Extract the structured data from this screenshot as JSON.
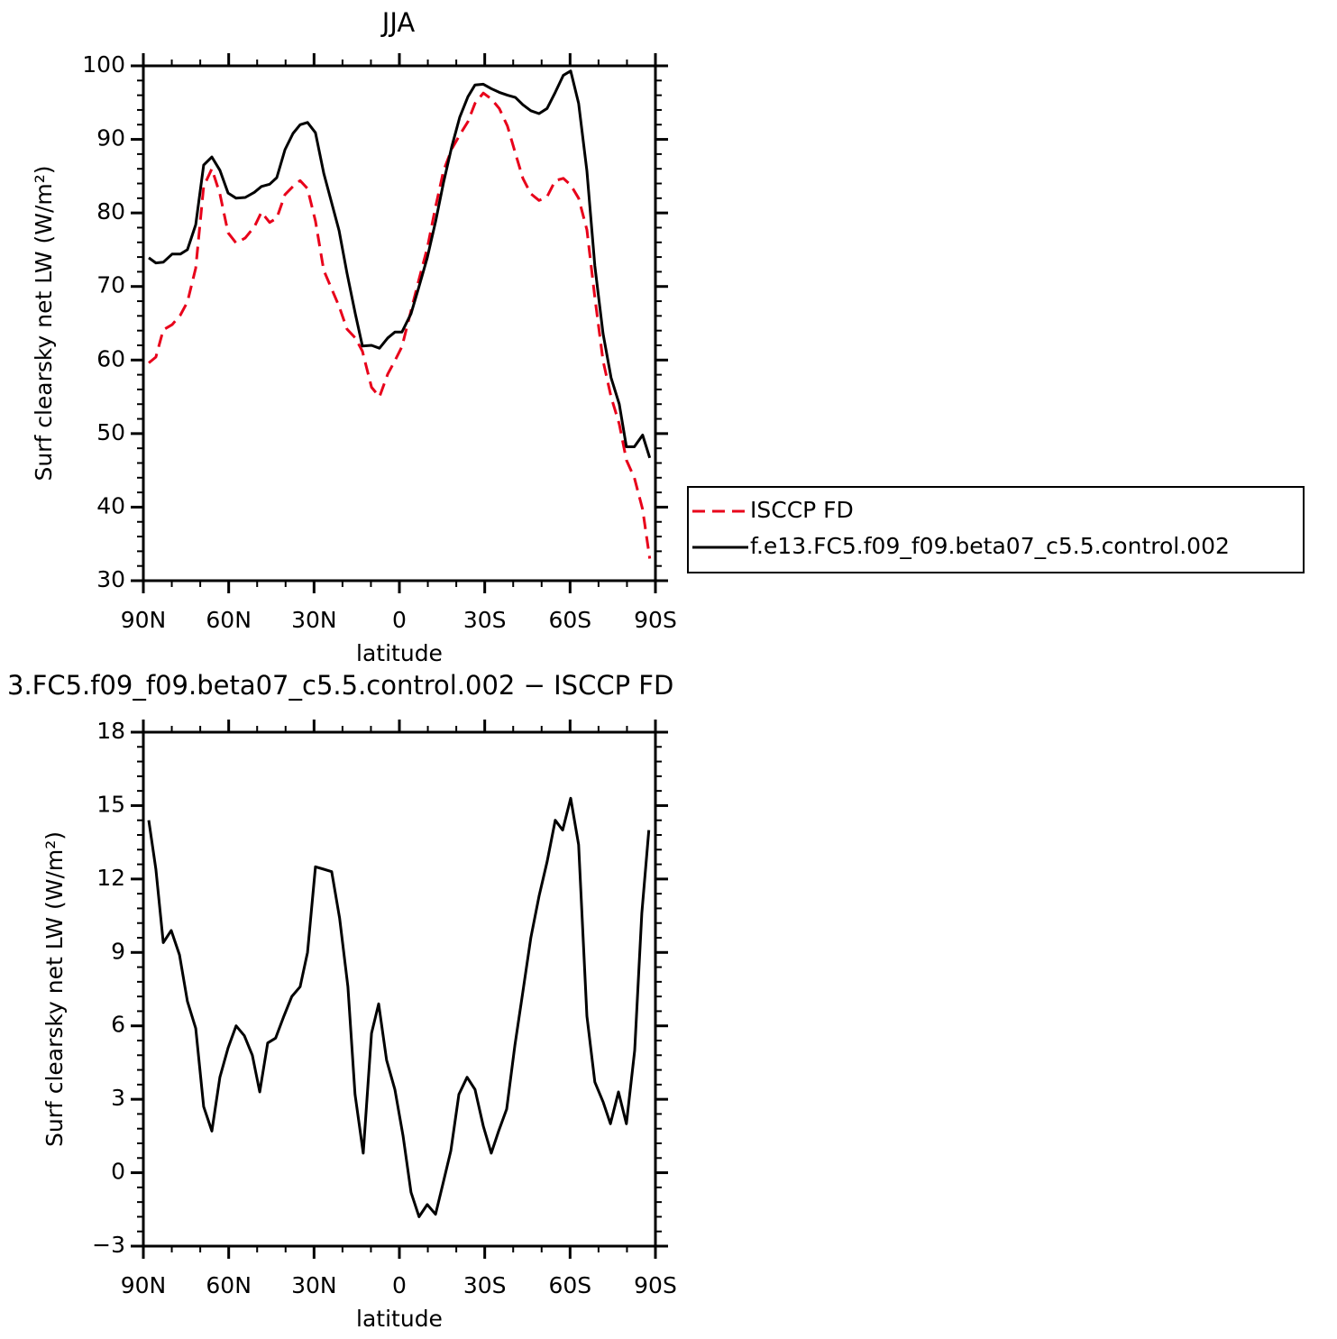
{
  "chart_data": [
    {
      "type": "line",
      "title": "JJA",
      "xlabel": "latitude",
      "ylabel": "Surf clearsky net LW (W/m²)",
      "xlim": [
        90,
        -90
      ],
      "ylim": [
        30,
        100
      ],
      "xticks": [
        {
          "value": 90,
          "label": "90N"
        },
        {
          "value": 60,
          "label": "60N"
        },
        {
          "value": 30,
          "label": "30N"
        },
        0,
        {
          "value": -30,
          "label": "30S"
        },
        {
          "value": -60,
          "label": "60S"
        },
        {
          "value": -90,
          "label": "90S"
        }
      ],
      "yticks": [
        30,
        40,
        50,
        60,
        70,
        80,
        90,
        100
      ],
      "xminor": 3,
      "yminor": 5,
      "legend": "right",
      "x": [
        88.1,
        85.6,
        83.0,
        79.9,
        77.0,
        74.5,
        71.6,
        68.8,
        65.9,
        63.1,
        60.2,
        57.4,
        54.2,
        51.0,
        48.5,
        45.6,
        43.1,
        40.2,
        37.4,
        34.9,
        32.3,
        29.5,
        26.6,
        21.2,
        18.4,
        15.5,
        13.0,
        9.8,
        7.0,
        4.1,
        1.6,
        -0.9,
        -4.1,
        -6.9,
        -9.8,
        -12.7,
        -15.5,
        -18.4,
        -21.2,
        -24.1,
        -26.6,
        -29.5,
        -32.3,
        -35.1,
        -38.0,
        -40.8,
        -43.4,
        -46.2,
        -49.1,
        -51.9,
        -54.8,
        -57.6,
        -60.2,
        -63.0,
        -65.9,
        -68.7,
        -71.6,
        -74.4,
        -77.3,
        -79.8,
        -82.6,
        -85.5,
        -88.0
      ],
      "series": [
        {
          "name": "ISCCP FD",
          "color": "#e8001a",
          "dashed": true,
          "values": [
            59.6,
            60.4,
            64.1,
            64.8,
            66.1,
            67.9,
            72.5,
            83.6,
            86.0,
            82.6,
            77.3,
            75.9,
            76.6,
            78.1,
            80.1,
            78.7,
            79.3,
            82.5,
            83.6,
            84.4,
            83.3,
            78.9,
            72.2,
            67.3,
            64.2,
            63.0,
            61.2,
            56.3,
            55.0,
            58.1,
            59.9,
            61.8,
            66.7,
            71.0,
            75.2,
            80.8,
            85.7,
            88.7,
            90.6,
            92.4,
            94.9,
            96.3,
            95.5,
            94.2,
            91.8,
            88.1,
            84.7,
            82.6,
            81.7,
            82.2,
            84.4,
            84.7,
            83.8,
            82.0,
            77.7,
            68.5,
            59.9,
            55.0,
            51.3,
            46.4,
            44.0,
            39.7,
            33.0
          ]
        },
        {
          "name": "f.e13.FC5.f09_f09.beta07_c5.5.control.002",
          "color": "#000000",
          "dashed": false,
          "values": [
            73.9,
            73.2,
            73.3,
            74.4,
            74.4,
            75.0,
            78.4,
            86.5,
            87.6,
            85.8,
            82.7,
            82.0,
            82.1,
            82.8,
            83.6,
            83.9,
            84.8,
            88.6,
            90.8,
            92.0,
            92.3,
            90.9,
            85.4,
            77.6,
            71.8,
            66.3,
            61.9,
            62.0,
            61.6,
            63.0,
            63.8,
            63.8,
            66.3,
            70.0,
            73.9,
            78.8,
            84.1,
            89.0,
            93.0,
            95.8,
            97.4,
            97.5,
            96.9,
            96.4,
            96.0,
            95.7,
            94.7,
            93.9,
            93.5,
            94.2,
            96.4,
            98.7,
            99.3,
            94.9,
            85.7,
            72.8,
            63.6,
            57.6,
            54.0,
            48.2,
            48.2,
            49.8,
            46.7
          ]
        }
      ]
    },
    {
      "type": "line",
      "title": "3.FC5.f09_f09.beta07_c5.5.control.002 − ISCCP FD",
      "xlabel": "latitude",
      "ylabel": "Surf clearsky net LW (W/m²)",
      "xlim": [
        90,
        -90
      ],
      "ylim": [
        -3,
        18
      ],
      "xticks": [
        {
          "value": 90,
          "label": "90N"
        },
        {
          "value": 60,
          "label": "60N"
        },
        {
          "value": 30,
          "label": "30N"
        },
        0,
        {
          "value": -30,
          "label": "30S"
        },
        {
          "value": -60,
          "label": "60S"
        },
        {
          "value": -90,
          "label": "90S"
        }
      ],
      "yticks": [
        {
          "value": -3,
          "label": "−3"
        },
        0,
        3,
        6,
        9,
        12,
        15,
        18
      ],
      "xminor": 3,
      "yminor": 5,
      "color": "#000000",
      "x": [
        88.1,
        85.6,
        83.0,
        80.2,
        77.3,
        74.5,
        71.6,
        68.8,
        65.9,
        63.1,
        60.2,
        57.4,
        54.5,
        51.7,
        49.1,
        46.3,
        43.5,
        40.6,
        37.8,
        34.9,
        32.3,
        29.5,
        26.6,
        23.8,
        21.0,
        18.1,
        15.6,
        12.7,
        9.8,
        7.3,
        4.5,
        1.6,
        -1.3,
        -4.1,
        -6.9,
        -9.8,
        -12.7,
        -15.2,
        -18.1,
        -20.9,
        -23.8,
        -26.6,
        -29.5,
        -32.3,
        -34.9,
        -37.7,
        -40.6,
        -43.4,
        -46.2,
        -49.1,
        -51.9,
        -54.8,
        -57.4,
        -60.2,
        -63.0,
        -65.9,
        -68.7,
        -71.6,
        -74.2,
        -77.0,
        -79.8,
        -82.7,
        -85.2,
        -87.7
      ],
      "values": [
        14.4,
        12.4,
        9.4,
        9.9,
        8.9,
        7.0,
        5.9,
        2.7,
        1.7,
        3.9,
        5.1,
        6.0,
        5.6,
        4.8,
        3.3,
        5.3,
        5.5,
        6.4,
        7.2,
        7.6,
        9.0,
        12.5,
        12.4,
        12.3,
        10.4,
        7.6,
        3.2,
        0.8,
        5.7,
        6.9,
        4.6,
        3.4,
        1.5,
        -0.8,
        -1.8,
        -1.3,
        -1.7,
        -0.5,
        0.9,
        3.2,
        3.9,
        3.4,
        1.9,
        0.8,
        1.7,
        2.6,
        5.2,
        7.4,
        9.6,
        11.3,
        12.7,
        14.4,
        14.0,
        15.3,
        13.4,
        6.4,
        3.7,
        2.9,
        2.0,
        3.3,
        2.0,
        5.0,
        10.6,
        14.0
      ]
    }
  ]
}
